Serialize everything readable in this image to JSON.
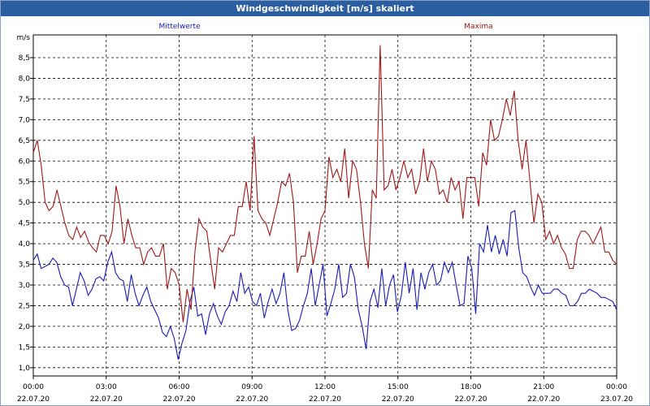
{
  "window": {
    "title": "Windgeschwindigkeit [m/s] skaliert"
  },
  "colors": {
    "titlebar": "#2a5ea1",
    "mean": "#1a1ab8",
    "max": "#a01818",
    "grid": "#000000"
  },
  "chart_data": {
    "type": "line",
    "title": "Windgeschwindigkeit [m/s] skaliert",
    "ylabel": "m/s",
    "ylim": [
      0.8,
      9.05
    ],
    "yticks": [
      "1,0",
      "1,5",
      "2,0",
      "2,5",
      "3,0",
      "3,5",
      "4,0",
      "4,5",
      "5,0",
      "5,5",
      "6,0",
      "6,5",
      "7,0",
      "7,5",
      "8,0",
      "8,5"
    ],
    "xlim_hours": [
      0,
      24
    ],
    "xticks": [
      {
        "time": "00:00",
        "date": "22.07.20"
      },
      {
        "time": "03:00",
        "date": "22.07.20"
      },
      {
        "time": "06:00",
        "date": "22.07.20"
      },
      {
        "time": "09:00",
        "date": "22.07.20"
      },
      {
        "time": "12:00",
        "date": "22.07.20"
      },
      {
        "time": "15:00",
        "date": "22.07.20"
      },
      {
        "time": "18:00",
        "date": "22.07.20"
      },
      {
        "time": "21:00",
        "date": "22.07.20"
      },
      {
        "time": "00:00",
        "date": "23.07.20"
      }
    ],
    "grid": true,
    "legend_placement": "top",
    "series": [
      {
        "name": "Mittelwerte",
        "color": "#1a1ab8",
        "values": [
          3.6,
          3.75,
          3.4,
          3.45,
          3.5,
          3.65,
          3.55,
          3.2,
          3.0,
          2.95,
          2.5,
          2.9,
          3.3,
          3.1,
          2.75,
          2.9,
          3.15,
          3.2,
          3.1,
          3.55,
          3.8,
          3.3,
          3.15,
          3.1,
          2.6,
          3.25,
          2.8,
          2.5,
          2.75,
          2.95,
          2.6,
          2.4,
          2.2,
          1.85,
          1.75,
          2.0,
          1.7,
          1.2,
          1.6,
          1.9,
          2.6,
          2.95,
          2.25,
          2.3,
          1.8,
          2.3,
          2.55,
          2.25,
          2.05,
          2.35,
          2.5,
          2.85,
          2.6,
          3.3,
          2.8,
          2.95,
          2.6,
          2.5,
          2.8,
          2.2,
          2.6,
          2.9,
          2.55,
          2.8,
          3.3,
          2.4,
          1.9,
          1.95,
          2.15,
          2.5,
          2.8,
          3.4,
          2.5,
          3.0,
          3.5,
          2.25,
          2.55,
          2.9,
          3.5,
          2.7,
          2.8,
          3.5,
          3.2,
          2.4,
          2.0,
          1.45,
          2.6,
          2.9,
          2.45,
          3.4,
          2.5,
          3.0,
          3.25,
          2.35,
          2.75,
          3.55,
          2.8,
          3.4,
          2.4,
          3.3,
          2.9,
          3.3,
          3.5,
          3.0,
          3.1,
          3.55,
          3.3,
          3.55,
          3.0,
          2.5,
          2.55,
          3.7,
          3.4,
          2.3,
          4.0,
          3.8,
          4.45,
          3.8,
          4.2,
          3.75,
          4.1,
          3.7,
          4.75,
          4.8,
          3.9,
          3.3,
          3.2,
          2.95,
          2.75,
          3.0,
          2.8,
          2.8,
          2.8,
          2.9,
          2.9,
          2.8,
          2.75,
          2.5,
          2.5,
          2.6,
          2.8,
          2.8,
          2.9,
          2.85,
          2.8,
          2.7,
          2.7,
          2.65,
          2.6,
          2.4
        ]
      },
      {
        "name": "Maxima",
        "color": "#a01818",
        "values": [
          6.2,
          6.5,
          5.9,
          5.0,
          4.8,
          4.9,
          5.3,
          4.9,
          4.5,
          4.2,
          4.1,
          4.4,
          4.15,
          4.3,
          4.05,
          3.9,
          3.8,
          4.2,
          4.2,
          4.0,
          4.3,
          5.4,
          4.9,
          4.0,
          4.6,
          4.2,
          3.9,
          3.9,
          3.5,
          3.8,
          3.9,
          3.7,
          3.7,
          4.0,
          2.9,
          3.4,
          3.3,
          3.0,
          2.1,
          2.9,
          2.4,
          3.8,
          4.6,
          4.4,
          4.3,
          3.6,
          2.9,
          3.9,
          3.8,
          4.0,
          4.2,
          4.2,
          4.9,
          4.9,
          5.5,
          4.8,
          6.6,
          4.8,
          4.6,
          4.5,
          4.2,
          4.6,
          5.0,
          5.5,
          5.4,
          5.7,
          5.0,
          3.3,
          3.7,
          3.7,
          4.3,
          3.5,
          4.0,
          4.6,
          4.8,
          6.1,
          5.6,
          5.8,
          5.5,
          6.3,
          5.1,
          6.0,
          5.8,
          5.0,
          4.0,
          3.4,
          5.3,
          5.1,
          8.8,
          5.3,
          5.4,
          5.8,
          5.3,
          5.6,
          6.0,
          5.6,
          5.8,
          5.2,
          5.5,
          6.3,
          5.5,
          6.0,
          5.8,
          5.2,
          5.3,
          5.0,
          5.6,
          5.3,
          5.5,
          4.6,
          5.6,
          5.6,
          5.6,
          4.9,
          6.2,
          5.9,
          7.0,
          6.5,
          6.6,
          7.0,
          7.5,
          7.1,
          7.7,
          6.5,
          5.8,
          6.5,
          5.5,
          4.5,
          5.2,
          5.0,
          4.1,
          4.3,
          4.0,
          4.2,
          3.9,
          3.75,
          3.4,
          3.4,
          4.1,
          4.3,
          4.3,
          4.2,
          4.0,
          4.2,
          4.4,
          3.8,
          3.8,
          3.6,
          3.5
        ]
      }
    ]
  }
}
